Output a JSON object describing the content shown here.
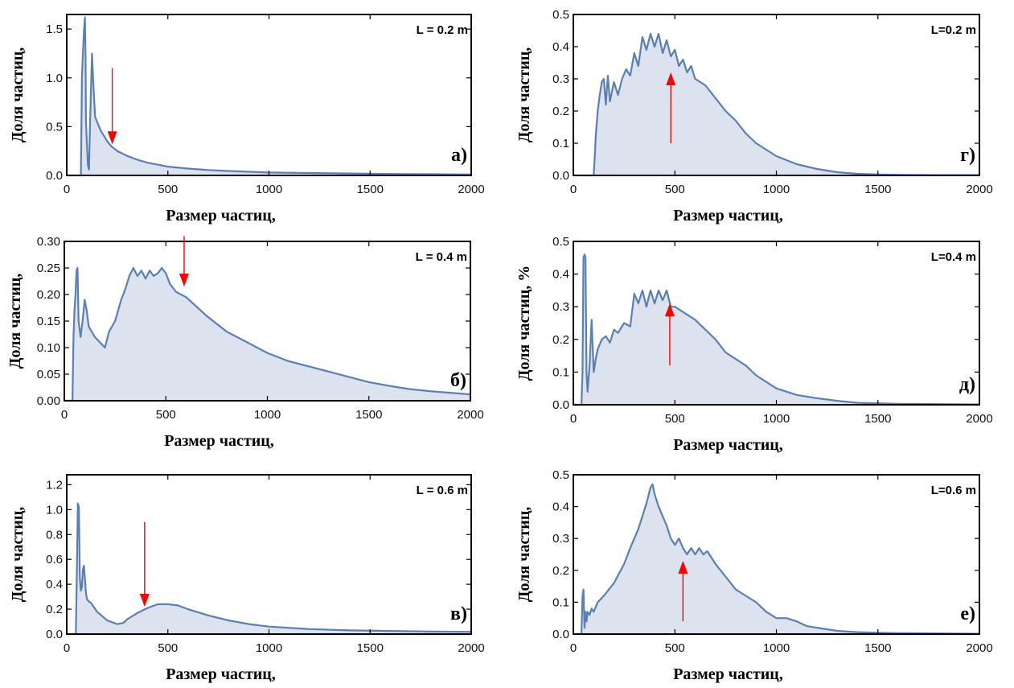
{
  "chart_data": [
    {
      "type": "area",
      "panel_label": "а)",
      "annotation": "L = 0.2 m",
      "xlabel": "Размер частиц,",
      "ylabel": "Доля частиц,",
      "xlim": [
        0,
        2000
      ],
      "ylim": [
        0,
        1.65
      ],
      "xticks": [
        "0",
        "500",
        "1000",
        "1500",
        "2000"
      ],
      "yticks": [
        "0.0",
        "0.5",
        "1.0",
        "1.5"
      ],
      "ytick_values": [
        0,
        0.5,
        1.0,
        1.5
      ],
      "arrow": {
        "x": 225,
        "y_tail": 1.1,
        "y_head": 0.32,
        "direction": "down"
      },
      "series": [
        {
          "x": [
            0,
            70,
            72,
            75,
            80,
            85,
            90,
            93,
            95,
            100,
            105,
            110,
            115,
            120,
            125,
            130,
            135,
            140,
            150,
            160,
            170,
            180,
            200,
            220,
            250,
            300,
            350,
            400,
            500,
            600,
            700,
            800,
            1000,
            1200,
            1400,
            1600,
            1800,
            2000
          ],
          "y": [
            0,
            0,
            0.4,
            1.0,
            1.25,
            1.48,
            1.62,
            1.2,
            0.55,
            0.3,
            0.1,
            0.06,
            0.5,
            0.9,
            1.25,
            1.0,
            0.8,
            0.6,
            0.55,
            0.5,
            0.45,
            0.42,
            0.35,
            0.3,
            0.25,
            0.2,
            0.16,
            0.13,
            0.09,
            0.07,
            0.055,
            0.045,
            0.03,
            0.025,
            0.02,
            0.015,
            0.012,
            0.01
          ]
        }
      ]
    },
    {
      "type": "area",
      "panel_label": "б)",
      "annotation": "L = 0.4 m",
      "xlabel": "Размер частиц,",
      "ylabel": "Доля частиц,",
      "xlim": [
        0,
        2000
      ],
      "ylim": [
        0,
        0.3
      ],
      "xticks": [
        "0",
        "500",
        "1000",
        "1500",
        "2000"
      ],
      "yticks": [
        "0.00",
        "0.05",
        "0.10",
        "0.15",
        "0.20",
        "0.25",
        "0.30"
      ],
      "ytick_values": [
        0,
        0.05,
        0.1,
        0.15,
        0.2,
        0.25,
        0.3
      ],
      "arrow": {
        "x": 590,
        "y_tail": 0.31,
        "y_head": 0.215,
        "direction": "down"
      },
      "series": [
        {
          "x": [
            0,
            40,
            45,
            50,
            55,
            60,
            65,
            70,
            80,
            90,
            100,
            110,
            120,
            150,
            200,
            220,
            250,
            280,
            300,
            320,
            340,
            360,
            380,
            400,
            420,
            440,
            460,
            480,
            500,
            520,
            550,
            600,
            700,
            800,
            900,
            1000,
            1100,
            1200,
            1300,
            1400,
            1500,
            1600,
            1700,
            1800,
            1900,
            2000
          ],
          "y": [
            0,
            0,
            0.12,
            0.17,
            0.2,
            0.245,
            0.25,
            0.15,
            0.12,
            0.15,
            0.19,
            0.17,
            0.14,
            0.12,
            0.1,
            0.13,
            0.15,
            0.19,
            0.21,
            0.235,
            0.25,
            0.235,
            0.245,
            0.23,
            0.245,
            0.235,
            0.24,
            0.25,
            0.24,
            0.22,
            0.205,
            0.195,
            0.16,
            0.13,
            0.11,
            0.09,
            0.075,
            0.065,
            0.055,
            0.045,
            0.035,
            0.028,
            0.022,
            0.018,
            0.015,
            0.012
          ]
        }
      ]
    },
    {
      "type": "area",
      "panel_label": "в)",
      "annotation": "L = 0.6 m",
      "xlabel": "Размер частиц,",
      "ylabel": "Доля частиц,",
      "xlim": [
        0,
        2000
      ],
      "ylim": [
        0,
        1.28
      ],
      "xticks": [
        "0",
        "500",
        "1000",
        "1500",
        "2000"
      ],
      "yticks": [
        "0.0",
        "0.2",
        "0.4",
        "0.6",
        "0.8",
        "1.0",
        "1.2"
      ],
      "ytick_values": [
        0,
        0.2,
        0.4,
        0.6,
        0.8,
        1.0,
        1.2
      ],
      "arrow": {
        "x": 385,
        "y_tail": 0.9,
        "y_head": 0.22,
        "direction": "down"
      },
      "series": [
        {
          "x": [
            0,
            45,
            50,
            55,
            60,
            65,
            70,
            75,
            80,
            85,
            90,
            95,
            100,
            110,
            120,
            150,
            200,
            250,
            280,
            300,
            350,
            400,
            450,
            500,
            550,
            600,
            700,
            800,
            900,
            1000,
            1200,
            1400,
            1600,
            1800,
            2000
          ],
          "y": [
            0,
            0,
            0.5,
            1.05,
            1.02,
            0.45,
            0.35,
            0.38,
            0.52,
            0.55,
            0.45,
            0.33,
            0.28,
            0.26,
            0.25,
            0.18,
            0.11,
            0.08,
            0.09,
            0.12,
            0.17,
            0.21,
            0.24,
            0.24,
            0.23,
            0.2,
            0.15,
            0.11,
            0.08,
            0.06,
            0.04,
            0.03,
            0.025,
            0.02,
            0.018
          ]
        }
      ]
    },
    {
      "type": "area",
      "panel_label": "г)",
      "annotation": "L=0.2 m",
      "xlabel": "Размер частиц,",
      "ylabel": "Доля частиц,",
      "xlim": [
        0,
        2000
      ],
      "ylim": [
        0,
        0.5
      ],
      "xticks": [
        "0",
        "500",
        "1000",
        "1500",
        "2000"
      ],
      "yticks": [
        "0.0",
        "0.1",
        "0.2",
        "0.3",
        "0.4",
        "0.5"
      ],
      "ytick_values": [
        0,
        0.1,
        0.2,
        0.3,
        0.4,
        0.5
      ],
      "arrow": {
        "x": 480,
        "y_tail": 0.1,
        "y_head": 0.32,
        "direction": "up"
      },
      "series": [
        {
          "x": [
            0,
            100,
            105,
            110,
            120,
            130,
            140,
            150,
            160,
            170,
            180,
            200,
            220,
            240,
            260,
            280,
            300,
            320,
            340,
            360,
            380,
            400,
            420,
            440,
            460,
            480,
            500,
            520,
            540,
            560,
            580,
            600,
            650,
            700,
            750,
            800,
            850,
            900,
            950,
            1000,
            1100,
            1200,
            1300,
            1400,
            1500,
            1600,
            1800,
            2000
          ],
          "y": [
            0,
            0,
            0.05,
            0.12,
            0.2,
            0.25,
            0.29,
            0.3,
            0.22,
            0.31,
            0.23,
            0.29,
            0.25,
            0.3,
            0.33,
            0.31,
            0.38,
            0.34,
            0.43,
            0.39,
            0.44,
            0.4,
            0.44,
            0.38,
            0.42,
            0.37,
            0.39,
            0.34,
            0.36,
            0.32,
            0.34,
            0.3,
            0.28,
            0.24,
            0.2,
            0.17,
            0.13,
            0.1,
            0.08,
            0.06,
            0.035,
            0.02,
            0.01,
            0.005,
            0.003,
            0.002,
            0.001,
            0.001
          ]
        }
      ]
    },
    {
      "type": "area",
      "panel_label": "д)",
      "annotation": "L=0.4 m",
      "xlabel": "Размер частиц,",
      "ylabel": "Доля частиц, %",
      "xlim": [
        0,
        2000
      ],
      "ylim": [
        0,
        0.5
      ],
      "xticks": [
        "0",
        "500",
        "1000",
        "1500",
        "2000"
      ],
      "yticks": [
        "0.0",
        "0.1",
        "0.2",
        "0.3",
        "0.4",
        "0.5"
      ],
      "ytick_values": [
        0,
        0.1,
        0.2,
        0.3,
        0.4,
        0.5
      ],
      "arrow": {
        "x": 475,
        "y_tail": 0.12,
        "y_head": 0.31,
        "direction": "up"
      },
      "series": [
        {
          "x": [
            0,
            40,
            45,
            50,
            55,
            60,
            65,
            70,
            75,
            80,
            90,
            100,
            110,
            120,
            140,
            160,
            180,
            200,
            220,
            250,
            280,
            300,
            320,
            340,
            360,
            380,
            400,
            420,
            440,
            460,
            480,
            500,
            550,
            600,
            650,
            700,
            750,
            800,
            850,
            900,
            950,
            1000,
            1100,
            1200,
            1300,
            1400,
            1600,
            1800,
            2000
          ],
          "y": [
            0,
            0,
            0.1,
            0.45,
            0.46,
            0.45,
            0.1,
            0.04,
            0.08,
            0.12,
            0.26,
            0.1,
            0.14,
            0.17,
            0.2,
            0.21,
            0.19,
            0.23,
            0.22,
            0.25,
            0.24,
            0.34,
            0.31,
            0.35,
            0.3,
            0.35,
            0.31,
            0.35,
            0.32,
            0.35,
            0.3,
            0.3,
            0.28,
            0.26,
            0.23,
            0.2,
            0.16,
            0.14,
            0.12,
            0.09,
            0.07,
            0.05,
            0.03,
            0.02,
            0.012,
            0.006,
            0.003,
            0.002,
            0.001
          ]
        }
      ]
    },
    {
      "type": "area",
      "panel_label": "е)",
      "annotation": "L=0.6 m",
      "xlabel": "Размер частиц,",
      "ylabel": "Доля частиц,",
      "xlim": [
        0,
        2000
      ],
      "ylim": [
        0,
        0.5
      ],
      "xticks": [
        "0",
        "500",
        "1000",
        "1500",
        "2000"
      ],
      "yticks": [
        "0.0",
        "0.1",
        "0.2",
        "0.3",
        "0.4",
        "0.5"
      ],
      "ytick_values": [
        0,
        0.1,
        0.2,
        0.3,
        0.4,
        0.5
      ],
      "arrow": {
        "x": 540,
        "y_tail": 0.04,
        "y_head": 0.23,
        "direction": "up"
      },
      "series": [
        {
          "x": [
            0,
            40,
            45,
            50,
            55,
            60,
            65,
            70,
            80,
            90,
            100,
            120,
            150,
            200,
            250,
            280,
            300,
            320,
            340,
            360,
            380,
            390,
            400,
            420,
            440,
            460,
            480,
            500,
            520,
            540,
            560,
            580,
            600,
            620,
            640,
            660,
            680,
            700,
            750,
            800,
            850,
            900,
            950,
            1000,
            1050,
            1100,
            1150,
            1200,
            1300,
            1400,
            1500,
            1600,
            1800,
            2000
          ],
          "y": [
            0,
            0,
            0.12,
            0.14,
            0.02,
            0.07,
            0.04,
            0.07,
            0.06,
            0.08,
            0.07,
            0.1,
            0.12,
            0.16,
            0.22,
            0.27,
            0.3,
            0.33,
            0.37,
            0.41,
            0.46,
            0.47,
            0.44,
            0.4,
            0.37,
            0.34,
            0.3,
            0.28,
            0.3,
            0.27,
            0.25,
            0.27,
            0.25,
            0.27,
            0.25,
            0.26,
            0.24,
            0.22,
            0.18,
            0.14,
            0.12,
            0.1,
            0.07,
            0.05,
            0.05,
            0.04,
            0.025,
            0.02,
            0.01,
            0.006,
            0.004,
            0.003,
            0.002,
            0.001
          ]
        }
      ]
    }
  ]
}
